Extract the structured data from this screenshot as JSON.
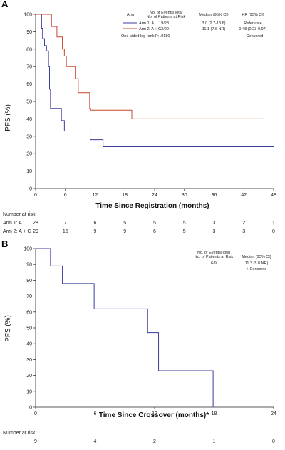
{
  "chart_data": [
    {
      "panel": "A",
      "type": "line",
      "xlabel": "Time Since Registration (months)",
      "ylabel": "PFS (%)",
      "xlim": [
        0,
        48
      ],
      "ylim": [
        0,
        100
      ],
      "xticks": [
        0,
        6,
        12,
        18,
        24,
        30,
        36,
        42,
        48
      ],
      "yticks": [
        0,
        10,
        20,
        30,
        40,
        50,
        60,
        70,
        80,
        90,
        100
      ],
      "legend": {
        "headers": [
          "Arm",
          "No. of Events/Total\nNo. of Patients at Risk",
          "Median (95% CI)",
          "HR (95% CI)"
        ],
        "rows": [
          {
            "label": "Arm 1: A",
            "color": "#3a3f9a",
            "events": "19/28",
            "median": "3.0 (2.7-13.6)",
            "hr": "Reference"
          },
          {
            "label": "Arm 2: A + C",
            "color": "#c8472f",
            "events": "13/29",
            "median": "11.1 (7.6 NR)",
            "hr": "0.48 (0.23-0.97)"
          }
        ],
        "logrank": "One-sided log rank P: .0180",
        "censored": "+ Censored"
      },
      "series": [
        {
          "name": "Arm 1: A",
          "color": "#3a3f9a",
          "steps": [
            [
              0,
              100
            ],
            [
              1.2,
              92
            ],
            [
              1.4,
              86
            ],
            [
              1.8,
              82
            ],
            [
              2.2,
              79
            ],
            [
              2.6,
              70
            ],
            [
              2.8,
              57
            ],
            [
              3.0,
              46
            ],
            [
              4.5,
              46
            ],
            [
              5.2,
              39
            ],
            [
              5.8,
              33
            ],
            [
              10.8,
              33
            ],
            [
              11.0,
              28
            ],
            [
              13.3,
              28
            ],
            [
              13.6,
              24
            ],
            [
              48,
              24
            ]
          ]
        },
        {
          "name": "Arm 2: A + C",
          "color": "#c8472f",
          "steps": [
            [
              0,
              100
            ],
            [
              3.2,
              93
            ],
            [
              4.3,
              87
            ],
            [
              5.4,
              80
            ],
            [
              5.8,
              76
            ],
            [
              6.2,
              70
            ],
            [
              8.0,
              63
            ],
            [
              8.6,
              55
            ],
            [
              10.6,
              55
            ],
            [
              10.9,
              46
            ],
            [
              11.1,
              45
            ],
            [
              19.2,
              45
            ],
            [
              19.4,
              40
            ],
            [
              46.2,
              40
            ]
          ]
        }
      ],
      "risk_table": {
        "title": "Number at risk:",
        "x": [
          0,
          6,
          12,
          18,
          24,
          30,
          36,
          42,
          48
        ],
        "rows": [
          {
            "label": "Arm 1: A",
            "values": [
              "28",
              "7",
              "6",
              "5",
              "5",
              "5",
              "3",
              "2",
              "1"
            ]
          },
          {
            "label": "Arm 2: A + C",
            "values": [
              "29",
              "15",
              "9",
              "9",
              "6",
              "5",
              "3",
              "3",
              "0"
            ]
          }
        ]
      }
    },
    {
      "panel": "B",
      "type": "line",
      "xlabel": "Time Since Crossover (months)*",
      "ylabel": "PFS (%)",
      "xlim": [
        0,
        24
      ],
      "ylim": [
        0,
        100
      ],
      "xticks": [
        0,
        6,
        12,
        18,
        24
      ],
      "yticks": [
        0,
        10,
        20,
        30,
        40,
        50,
        60,
        70,
        80,
        90,
        100
      ],
      "legend": {
        "headers": [
          "No. of Events/Total\nNo. of Patients at Risk",
          "Median (95% CI)"
        ],
        "rows": [
          {
            "events": "6/9",
            "median": "11.3 (5.8 NR)"
          }
        ],
        "censored": "+ Censored"
      },
      "series": [
        {
          "name": "",
          "color": "#3a3f9a",
          "steps": [
            [
              0,
              100
            ],
            [
              1.4,
              100
            ],
            [
              1.5,
              89
            ],
            [
              2.6,
              89
            ],
            [
              2.7,
              78
            ],
            [
              5.8,
              78
            ],
            [
              5.9,
              62
            ],
            [
              11.2,
              62
            ],
            [
              11.3,
              47
            ],
            [
              12.3,
              47
            ],
            [
              12.4,
              23
            ],
            [
              17.8,
              23
            ],
            [
              17.9,
              0
            ]
          ]
        }
      ],
      "censor_marks": [
        [
          16.5,
          23
        ]
      ],
      "risk_table": {
        "title": "Number at risk:",
        "x": [
          0,
          6,
          12,
          18,
          24
        ],
        "values": [
          "9",
          "4",
          "2",
          "1",
          "0"
        ]
      }
    }
  ]
}
